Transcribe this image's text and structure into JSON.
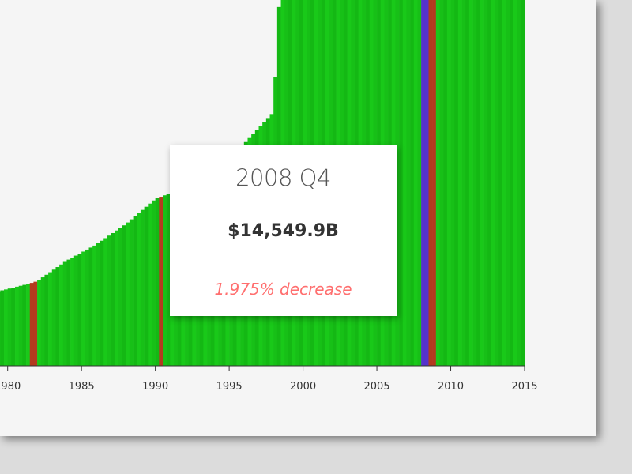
{
  "chart_data": {
    "type": "bar",
    "x_tick_labels": [
      "1980",
      "1985",
      "1990",
      "1995",
      "2000",
      "2005",
      "2010",
      "2015"
    ],
    "xlim": [
      1979.0,
      2015.0
    ],
    "ylim": [
      0,
      16000
    ],
    "unit": "B",
    "bar_color": "#1ed81e",
    "recession_color": "#b33a1f",
    "highlight_color": "#5533cc",
    "recession_periods": [
      [
        1981.5,
        1981.9
      ],
      [
        1990.3,
        1990.6
      ],
      [
        2007.4,
        2007.6
      ],
      [
        2008.5,
        2008.9
      ]
    ],
    "highlight_period": [
      2007.9,
      2008.4
    ],
    "series": [
      {
        "x": [
          1979.0,
          1981.5,
          1982.0,
          1984.0,
          1986.0,
          1988.0,
          1990.0,
          1992.0,
          1994.0,
          1996.0,
          1998.0,
          1998.4,
          2015.0
        ],
        "values": [
          3200,
          3600,
          3700,
          4600,
          5300,
          6200,
          7300,
          7800,
          8700,
          9700,
          11100,
          16000,
          16000
        ]
      }
    ]
  },
  "tooltip": {
    "title": "2008 Q4",
    "value": "$14,549.9B",
    "change": "1.975% decrease"
  }
}
